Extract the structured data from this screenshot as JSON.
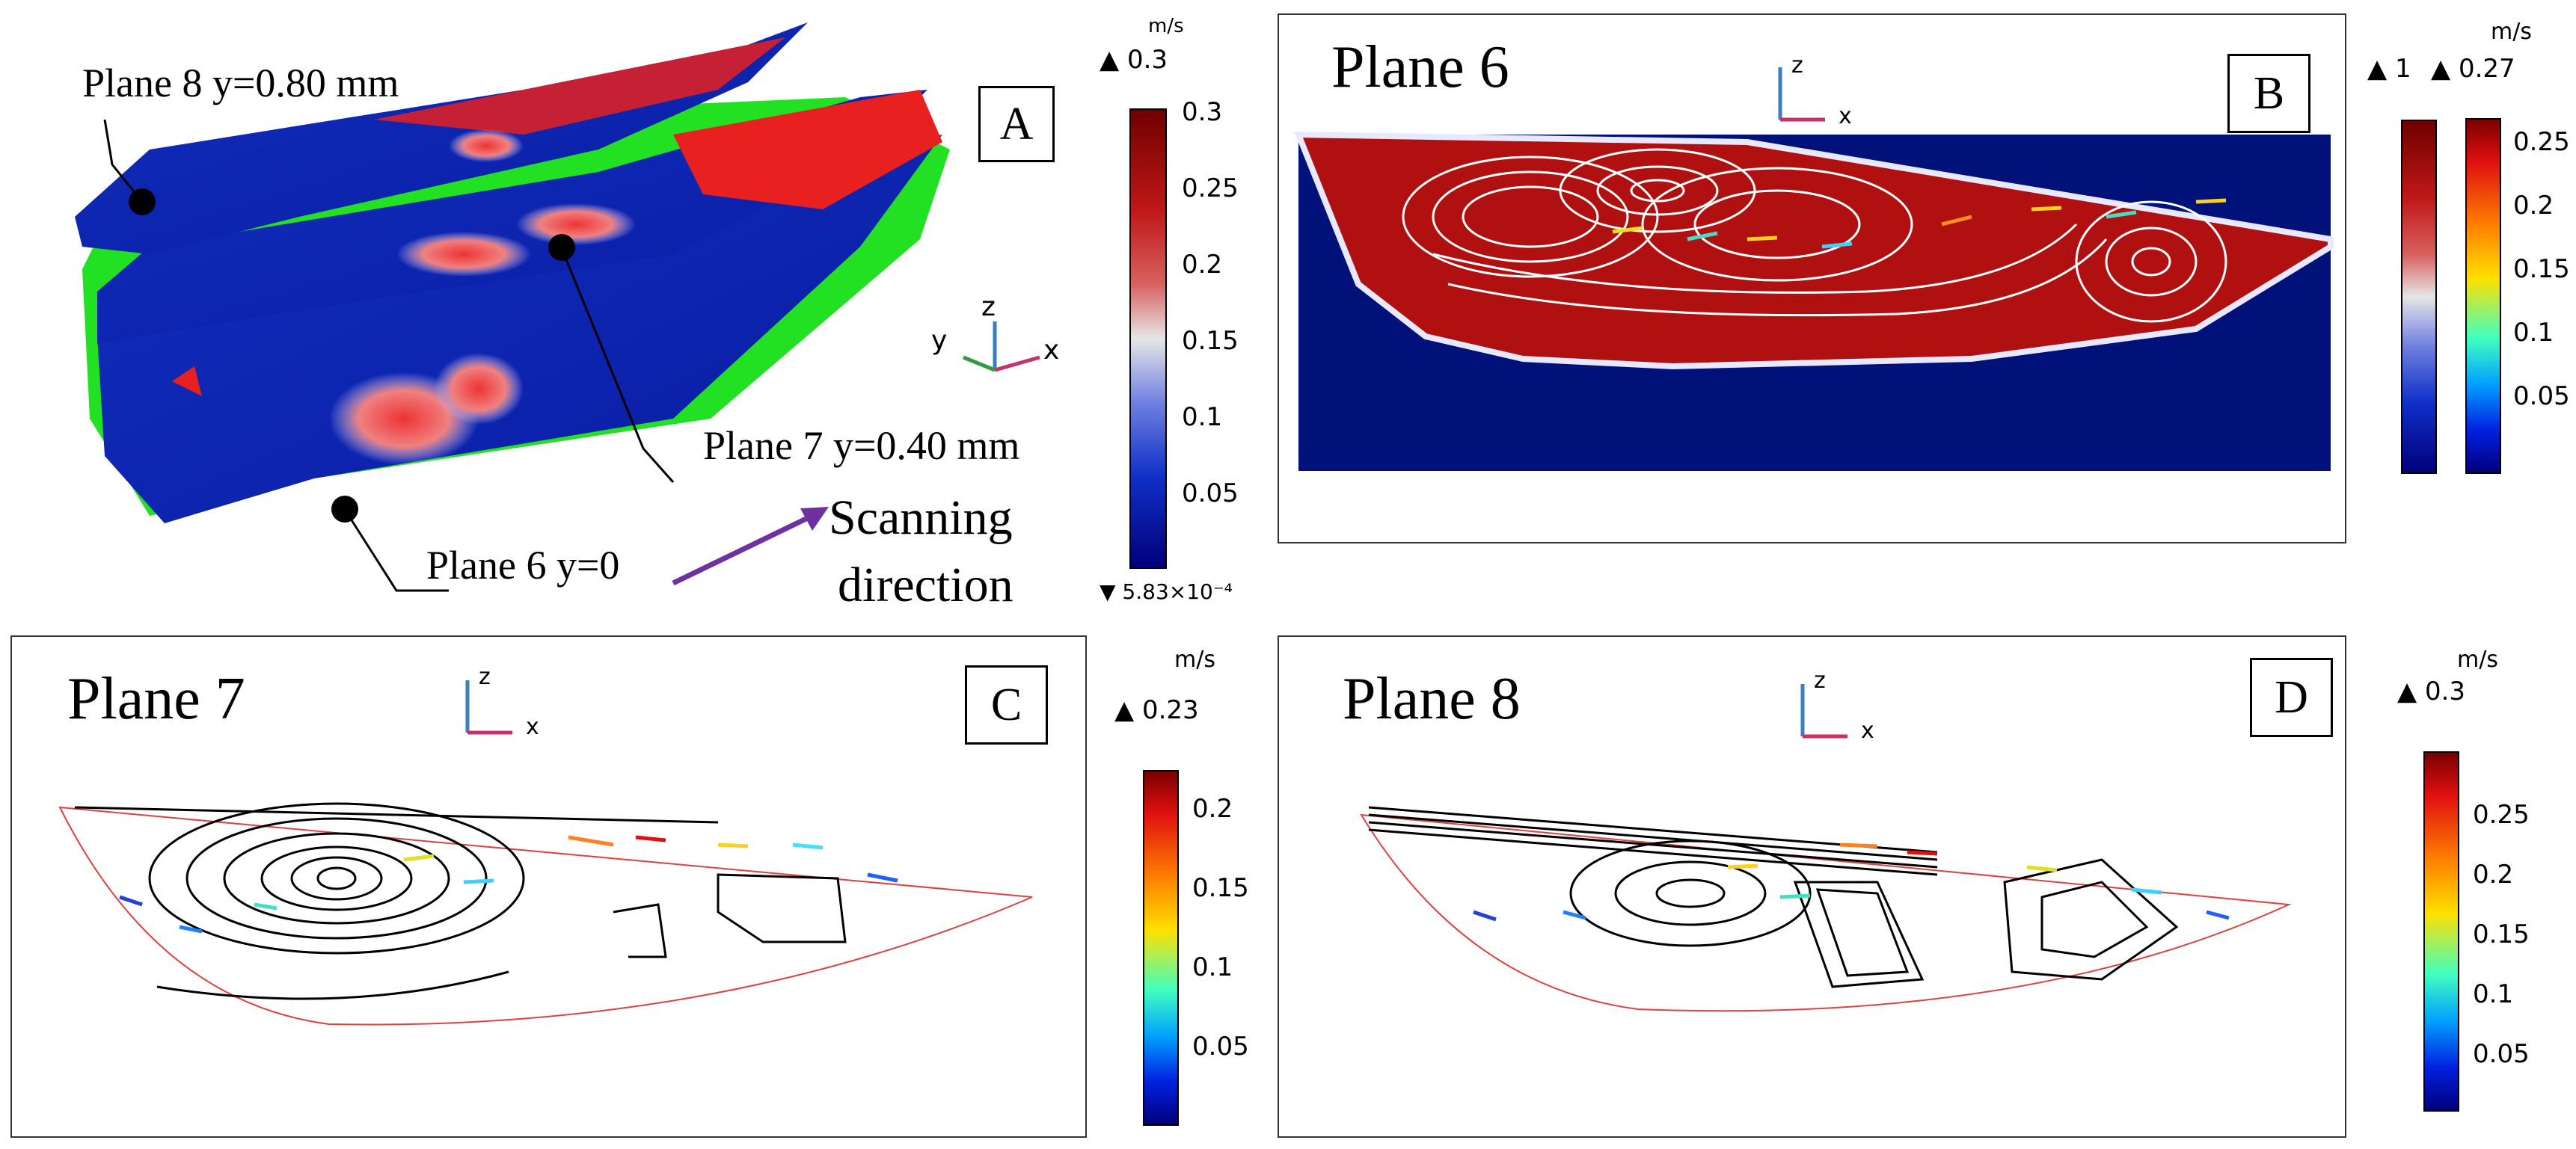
{
  "panel_a": {
    "letter": "A",
    "plane8_label": "Plane 8 y=0.80 mm",
    "plane7_label": "Plane 7 y=0.40 mm",
    "plane6_label": "Plane 6 y=0",
    "scanning_line1": "Scanning",
    "scanning_line2": "direction",
    "axes": {
      "x": "x",
      "y": "y",
      "z": "z"
    },
    "colorbar": {
      "unit": "m/s",
      "max_label": "▲ 0.3",
      "min_label": "▼ 5.83×10⁻⁴",
      "ticks": [
        "0.3",
        "0.25",
        "0.2",
        "0.15",
        "0.1",
        "0.05"
      ]
    }
  },
  "panel_b": {
    "letter": "B",
    "title": "Plane 6",
    "axes": {
      "x": "x",
      "z": "z"
    },
    "colorbar_left": {
      "max_label": "▲ 1"
    },
    "colorbar_right": {
      "unit": "m/s",
      "max_label": "▲ 0.27",
      "ticks": [
        "0.25",
        "0.2",
        "0.15",
        "0.1",
        "0.05"
      ]
    }
  },
  "panel_c": {
    "letter": "C",
    "title": "Plane 7",
    "axes": {
      "x": "x",
      "z": "z"
    },
    "colorbar": {
      "unit": "m/s",
      "max_label": "▲ 0.23",
      "ticks": [
        "0.2",
        "0.15",
        "0.1",
        "0.05"
      ]
    }
  },
  "panel_d": {
    "letter": "D",
    "title": "Plane 8",
    "axes": {
      "x": "x",
      "z": "z"
    },
    "colorbar": {
      "unit": "m/s",
      "max_label": "▲ 0.3",
      "ticks": [
        "0.25",
        "0.2",
        "0.15",
        "0.1",
        "0.05"
      ]
    }
  },
  "colors": {
    "jet_top": "#8b0000",
    "jet_bottom": "#00008b",
    "melt_red": "#b01010",
    "substrate_blue": "#00117a",
    "pool_green": "#22e022",
    "arrow_purple": "#7030a0"
  }
}
